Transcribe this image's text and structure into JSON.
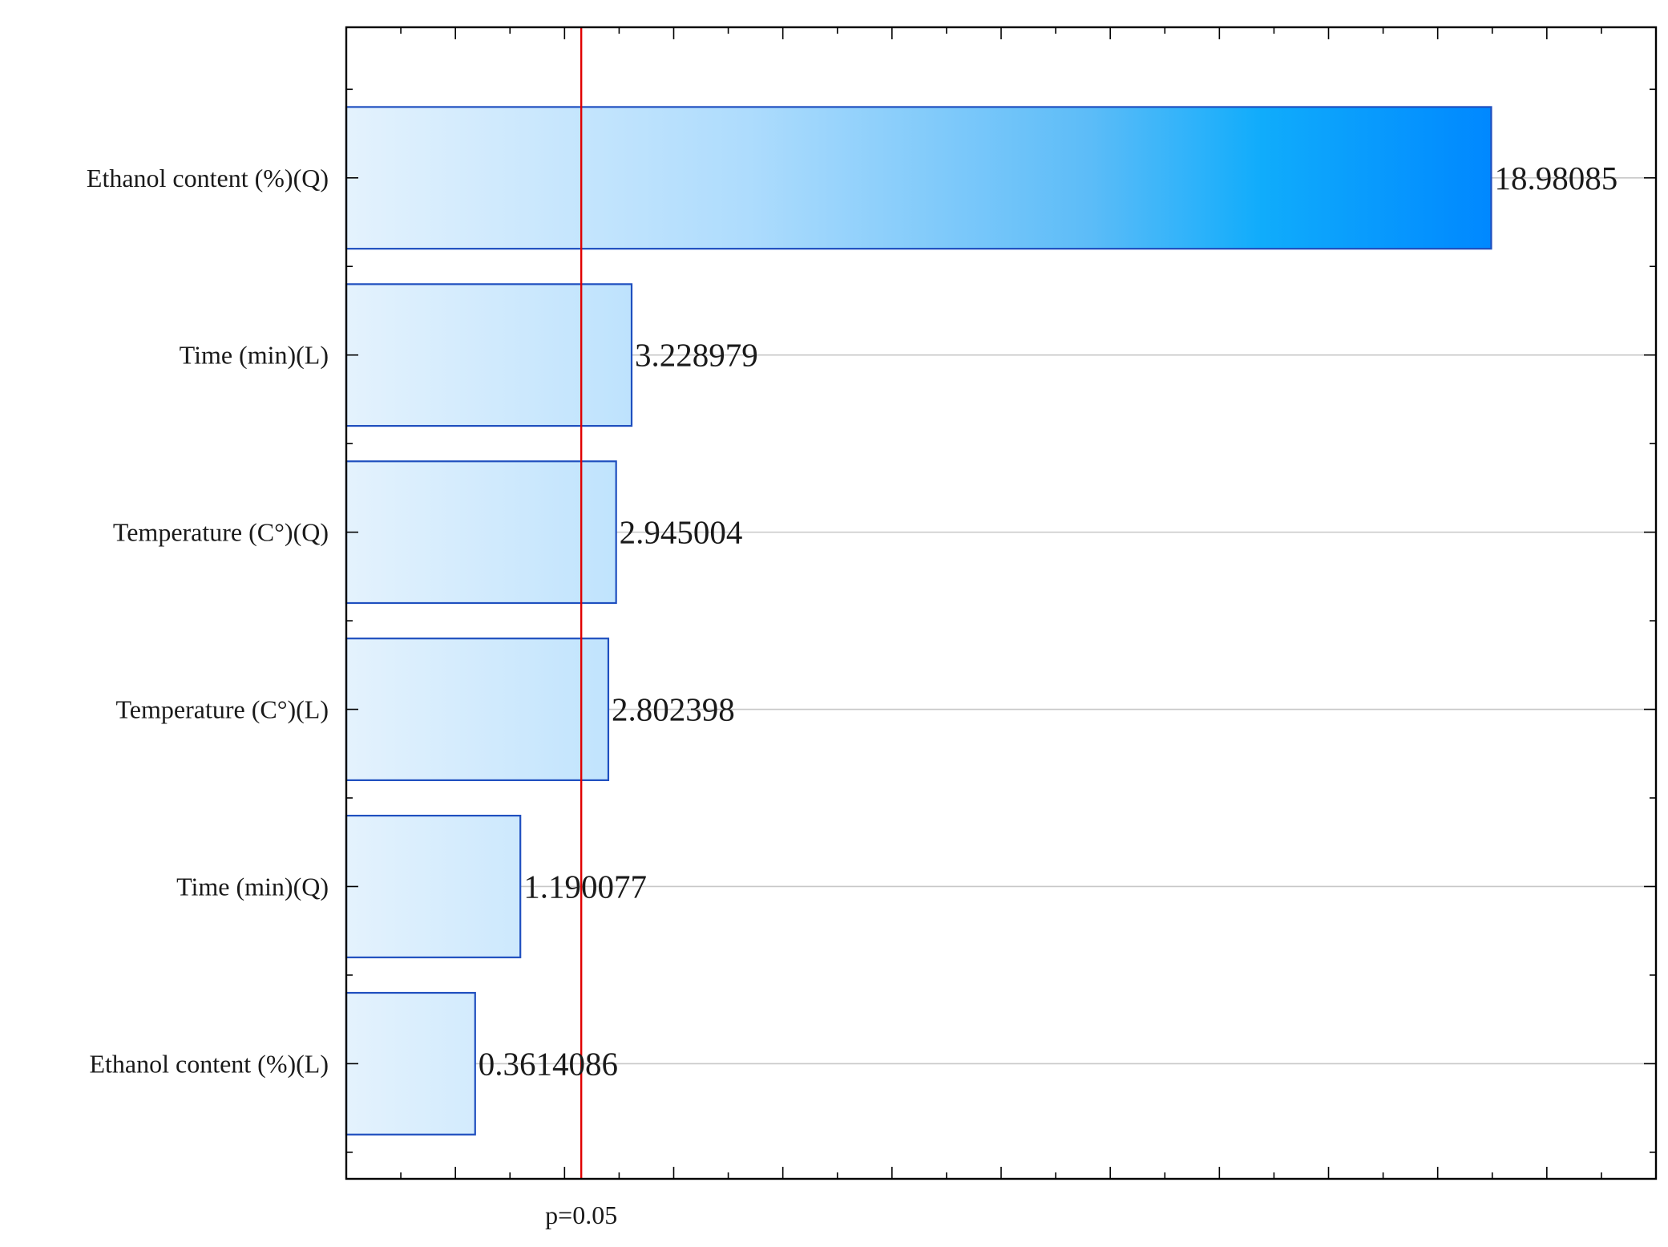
{
  "chart_data": {
    "type": "bar",
    "orientation": "horizontal",
    "title": "",
    "xlabel": "",
    "ylabel": "",
    "categories": [
      "Ethanol content (%)(Q)",
      "Time (min)(L)",
      "Temperature (C°)(Q)",
      "Temperature (C°)(L)",
      "Time (min)(Q)",
      "Ethanol content (%)(L)"
    ],
    "values": [
      18.98085,
      3.228979,
      2.945004,
      2.802398,
      1.190077,
      0.3614086
    ],
    "value_labels": [
      "18.98085",
      "3.228979",
      "2.945004",
      "2.802398",
      "1.190077",
      "0.3614086"
    ],
    "xlim": [
      -2.0,
      22.0
    ],
    "reference_line": {
      "value": 2.306,
      "label": "p=0.05",
      "color": "#e00000"
    },
    "grid": "horizontal",
    "legend": "none",
    "colors": {
      "bar_start": "#e4f2fd",
      "bar_end": "#0088ff",
      "bar_edge": "#1f4fbf",
      "axis": "#000000",
      "grid": "#c8c8c8"
    }
  }
}
